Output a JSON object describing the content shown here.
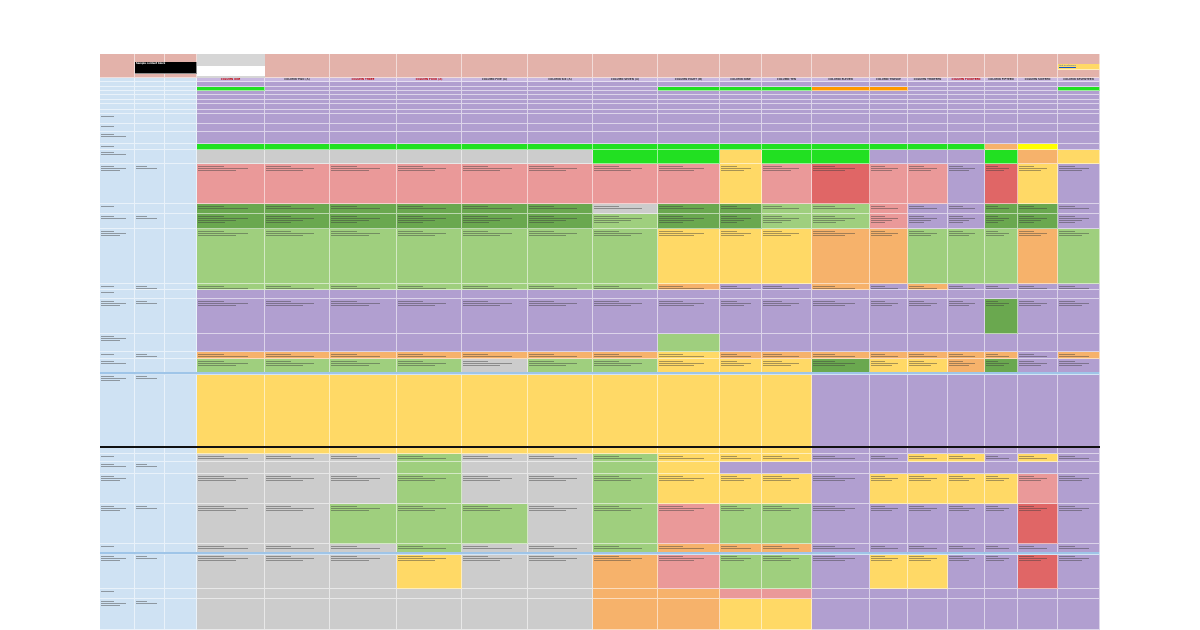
{
  "colors": {
    "pink": "#e3b2aa",
    "lavender": "#b19fd0",
    "lavender_light": "#c8b8e0",
    "green": "#9fcf7e",
    "dark_green": "#6aa84f",
    "bright_green": "#22e022",
    "yellow": "#ffd966",
    "bright_yellow": "#ffff00",
    "orange": "#f6b26b",
    "bright_orange": "#ff9900",
    "red": "#e06666",
    "salmon": "#ea9999",
    "gray": "#cccccc",
    "blue_col": "#cfe2f3",
    "blue_band": "#9fc5e8"
  },
  "sheet": {
    "title_block": "Sample content block",
    "link_text": "Link to reference",
    "columns": [
      "COLUMN ONE",
      "COLUMN TWO (A)",
      "COLUMN THREE",
      "COLUMN FOUR (A)",
      "COLUMN FIVE (A)",
      "COLUMN SIX (A)",
      "COLUMN SEVEN (A)",
      "COLUMN EIGHT (B)",
      "COLUMN NINE",
      "COLUMN TEN",
      "COLUMN ELEVEN",
      "COLUMN TWELVE",
      "COLUMN THIRTEEN",
      "COLUMN FOURTEEN",
      "COLUMN FIFTEEN",
      "COLUMN SIXTEEN",
      "COLUMN SEVENTEEN"
    ],
    "red_header_indices": [
      0,
      2,
      3,
      13
    ]
  }
}
